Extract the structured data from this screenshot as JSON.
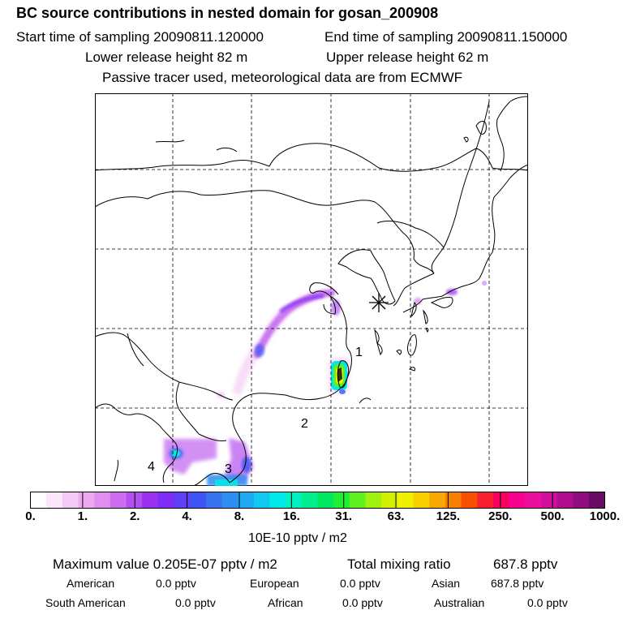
{
  "header": {
    "title": "BC  source contributions in nested domain for gosan_200908",
    "start_time": "Start time of sampling 20090811.120000",
    "end_time": "End time of sampling 20090811.150000",
    "lower_height": "Lower release height   82 m",
    "upper_height": "Upper release height   62 m",
    "note": "Passive tracer used, meteorological data are from ECMWF"
  },
  "map": {
    "receptor_marker": "star-icon",
    "region_labels": [
      "1",
      "2",
      "3",
      "4"
    ],
    "coastline_color": "#000000",
    "grid_style": "dashed"
  },
  "colorbar": {
    "colors": [
      "#ffffff",
      "#fbe6fb",
      "#f5c9f5",
      "#eeaaf0",
      "#e28ef0",
      "#cf6cf0",
      "#b34ff0",
      "#9a30f0",
      "#7d2df5",
      "#6040f5",
      "#3f54f5",
      "#3a73f0",
      "#2f8ef0",
      "#1fa8f0",
      "#10c8f0",
      "#00e8e8",
      "#00f0c0",
      "#00f090",
      "#00e860",
      "#20f030",
      "#60f020",
      "#a0f010",
      "#d0f000",
      "#f0f000",
      "#f8d000",
      "#f8a800",
      "#f88000",
      "#f85000",
      "#f82030",
      "#f80060",
      "#f80090",
      "#e8109c",
      "#d0109c",
      "#b00c8e",
      "#900c80",
      "#680c68"
    ],
    "tick_labels": [
      "0.",
      "1.",
      "2.",
      "4.",
      "8.",
      "16.",
      "31.",
      "63.",
      "125.",
      "250.",
      "500.",
      "1000."
    ],
    "unit": "10E-10 pptv / m2"
  },
  "summary": {
    "max_value": "Maximum value  0.205E-07 pptv / m2",
    "total_label": "Total mixing ratio",
    "total_value": "687.8 pptv",
    "regions": [
      {
        "label": "American",
        "value": "0.0 pptv"
      },
      {
        "label": "European",
        "value": "0.0 pptv"
      },
      {
        "label": "Asian",
        "value": "687.8 pptv"
      },
      {
        "label": "South American",
        "value": "0.0 pptv"
      },
      {
        "label": "African",
        "value": "0.0 pptv"
      },
      {
        "label": "Australian",
        "value": "0.0 pptv"
      }
    ]
  }
}
